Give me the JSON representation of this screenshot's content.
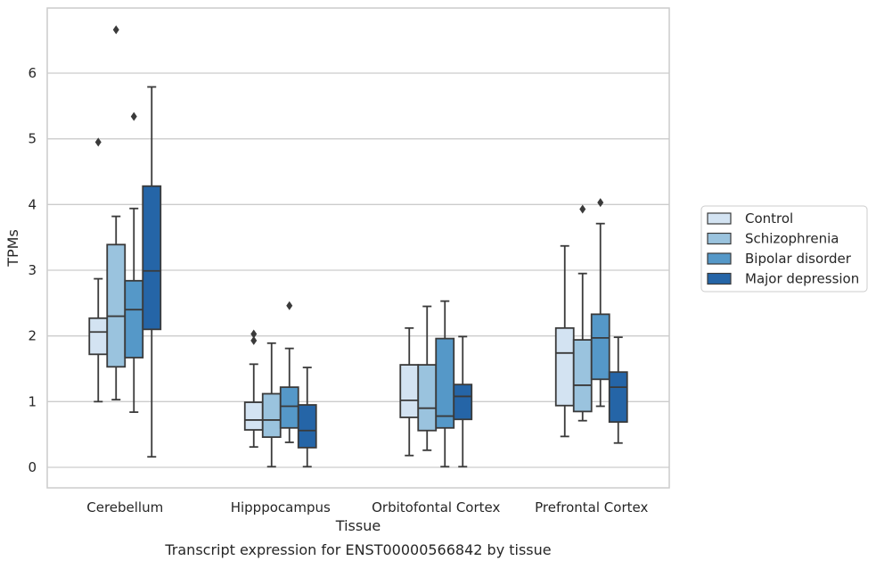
{
  "chart_data": {
    "type": "boxplot",
    "caption": "Transcript expression for ENST00000566842 by tissue",
    "xlabel": "Tissue",
    "ylabel": "TPMs",
    "ylim": [
      -0.32,
      6.95
    ],
    "yticks": [
      0,
      1,
      2,
      3,
      4,
      5,
      6
    ],
    "grid": "horizontal",
    "legend_position": "right",
    "categories": [
      "Cerebellum",
      "Hipppocampus",
      "Orbitofontal Cortex",
      "Prefrontal Cortex"
    ],
    "series": [
      {
        "name": "Control",
        "color": "#d3e3f2",
        "boxes": [
          {
            "whislo": 1.0,
            "q1": 1.72,
            "med": 2.06,
            "q3": 2.27,
            "whishi": 2.87,
            "fliers": [
              4.95
            ]
          },
          {
            "whislo": 0.31,
            "q1": 0.57,
            "med": 0.72,
            "q3": 0.99,
            "whishi": 1.57,
            "fliers": [
              1.93,
              2.03
            ]
          },
          {
            "whislo": 0.18,
            "q1": 0.76,
            "med": 1.02,
            "q3": 1.56,
            "whishi": 2.12,
            "fliers": []
          },
          {
            "whislo": 0.47,
            "q1": 0.94,
            "med": 1.74,
            "q3": 2.12,
            "whishi": 3.37,
            "fliers": []
          }
        ]
      },
      {
        "name": "Schizophrenia",
        "color": "#9ac3de",
        "boxes": [
          {
            "whislo": 1.03,
            "q1": 1.53,
            "med": 2.3,
            "q3": 3.39,
            "whishi": 3.82,
            "fliers": [
              6.66
            ]
          },
          {
            "whislo": 0.01,
            "q1": 0.46,
            "med": 0.72,
            "q3": 1.12,
            "whishi": 1.89,
            "fliers": []
          },
          {
            "whislo": 0.26,
            "q1": 0.56,
            "med": 0.9,
            "q3": 1.56,
            "whishi": 2.45,
            "fliers": []
          },
          {
            "whislo": 0.71,
            "q1": 0.85,
            "med": 1.25,
            "q3": 1.94,
            "whishi": 2.95,
            "fliers": [
              3.93
            ]
          }
        ]
      },
      {
        "name": "Bipolar disorder",
        "color": "#5598c8",
        "boxes": [
          {
            "whislo": 0.84,
            "q1": 1.67,
            "med": 2.4,
            "q3": 2.84,
            "whishi": 3.94,
            "fliers": [
              5.34
            ]
          },
          {
            "whislo": 0.38,
            "q1": 0.6,
            "med": 0.93,
            "q3": 1.22,
            "whishi": 1.81,
            "fliers": [
              2.46
            ]
          },
          {
            "whislo": 0.01,
            "q1": 0.6,
            "med": 0.78,
            "q3": 1.96,
            "whishi": 2.53,
            "fliers": []
          },
          {
            "whislo": 0.93,
            "q1": 1.34,
            "med": 1.97,
            "q3": 2.33,
            "whishi": 3.71,
            "fliers": [
              4.03
            ]
          }
        ]
      },
      {
        "name": "Major depression",
        "color": "#2565a7",
        "boxes": [
          {
            "whislo": 0.16,
            "q1": 2.1,
            "med": 2.99,
            "q3": 4.28,
            "whishi": 5.79,
            "fliers": []
          },
          {
            "whislo": 0.01,
            "q1": 0.3,
            "med": 0.56,
            "q3": 0.95,
            "whishi": 1.52,
            "fliers": []
          },
          {
            "whislo": 0.01,
            "q1": 0.73,
            "med": 1.08,
            "q3": 1.26,
            "whishi": 1.99,
            "fliers": []
          },
          {
            "whislo": 0.37,
            "q1": 0.69,
            "med": 1.22,
            "q3": 1.45,
            "whishi": 1.98,
            "fliers": []
          }
        ]
      }
    ]
  }
}
